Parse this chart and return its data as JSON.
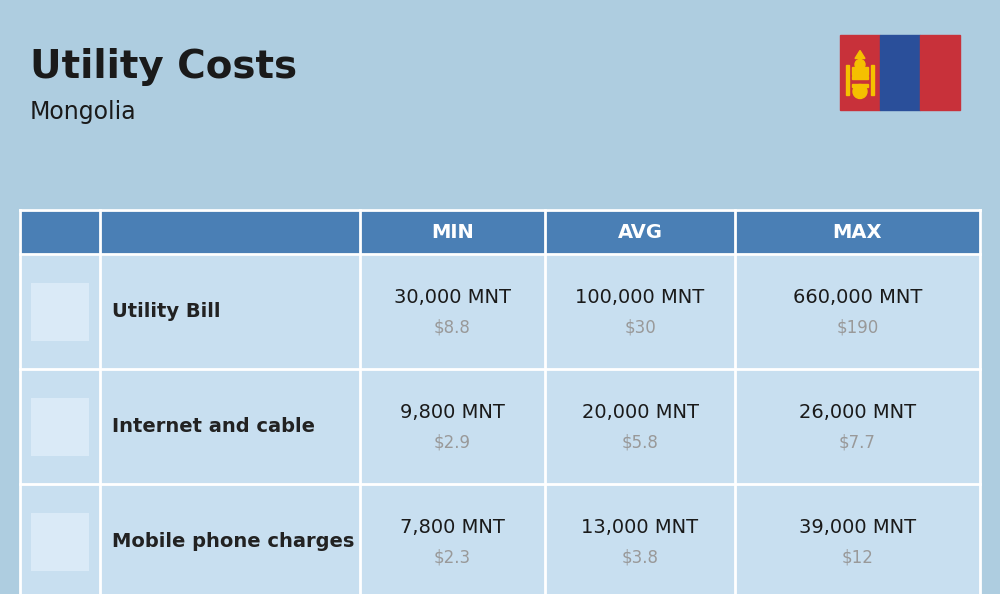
{
  "title": "Utility Costs",
  "subtitle": "Mongolia",
  "background_color": "#aecde0",
  "header_color": "#4a7fb5",
  "header_text_color": "#ffffff",
  "row_color": "#c8dff0",
  "divider_color": "#ffffff",
  "text_color": "#1a1a1a",
  "subtext_color": "#999999",
  "label_color": "#222222",
  "col_headers": [
    "MIN",
    "AVG",
    "MAX"
  ],
  "rows": [
    {
      "label": "Utility Bill",
      "min_mnt": "30,000 MNT",
      "min_usd": "$8.8",
      "avg_mnt": "100,000 MNT",
      "avg_usd": "$30",
      "max_mnt": "660,000 MNT",
      "max_usd": "$190"
    },
    {
      "label": "Internet and cable",
      "min_mnt": "9,800 MNT",
      "min_usd": "$2.9",
      "avg_mnt": "20,000 MNT",
      "avg_usd": "$5.8",
      "max_mnt": "26,000 MNT",
      "max_usd": "$7.7"
    },
    {
      "label": "Mobile phone charges",
      "min_mnt": "7,800 MNT",
      "min_usd": "$2.3",
      "avg_mnt": "13,000 MNT",
      "avg_usd": "$3.8",
      "max_mnt": "39,000 MNT",
      "max_usd": "$12"
    }
  ],
  "flag_red": "#c8313a",
  "flag_blue": "#2a4f9a",
  "flag_symbol_color": "#f5c000",
  "title_fontsize": 28,
  "subtitle_fontsize": 17,
  "header_fontsize": 14,
  "label_fontsize": 14,
  "value_fontsize": 14,
  "usd_fontsize": 12
}
